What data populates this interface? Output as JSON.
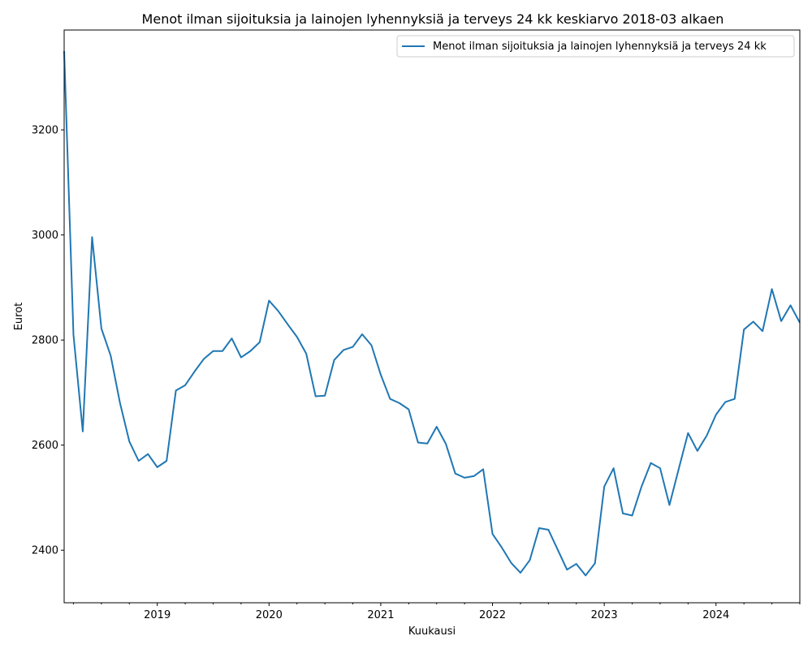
{
  "chart_data": {
    "type": "line",
    "title": "Menot ilman sijoituksia ja lainojen lyhennyksiä ja terveys 24 kk keskiarvo 2018-03 alkaen",
    "xlabel": "Kuukausi",
    "ylabel": "Eurot",
    "xlim": [
      "2018-03",
      "2024-10"
    ],
    "ylim": [
      2300,
      3390
    ],
    "y_ticks": [
      2400,
      2600,
      2800,
      3000,
      3200
    ],
    "x_ticks": [
      "2019",
      "2020",
      "2021",
      "2022",
      "2023",
      "2024"
    ],
    "grid": false,
    "legend": "upper right",
    "colors": {
      "line": "#1f77b4"
    },
    "series": [
      {
        "name": "Menot ilman sijoituksia ja lainojen lyhennyksiä ja terveys 24 kk",
        "x": [
          "2018-03",
          "2018-04",
          "2018-05",
          "2018-06",
          "2018-07",
          "2018-08",
          "2018-09",
          "2018-10",
          "2018-11",
          "2018-12",
          "2019-01",
          "2019-02",
          "2019-03",
          "2019-04",
          "2019-05",
          "2019-06",
          "2019-07",
          "2019-08",
          "2019-09",
          "2019-10",
          "2019-11",
          "2019-12",
          "2020-01",
          "2020-02",
          "2020-03",
          "2020-04",
          "2020-05",
          "2020-06",
          "2020-07",
          "2020-08",
          "2020-09",
          "2020-10",
          "2020-11",
          "2020-12",
          "2021-01",
          "2021-02",
          "2021-03",
          "2021-04",
          "2021-05",
          "2021-06",
          "2021-07",
          "2021-08",
          "2021-09",
          "2021-10",
          "2021-11",
          "2021-12",
          "2022-01",
          "2022-02",
          "2022-03",
          "2022-04",
          "2022-05",
          "2022-06",
          "2022-07",
          "2022-08",
          "2022-09",
          "2022-10",
          "2022-11",
          "2022-12",
          "2023-01",
          "2023-02",
          "2023-03",
          "2023-04",
          "2023-05",
          "2023-06",
          "2023-07",
          "2023-08",
          "2023-09",
          "2023-10",
          "2023-11",
          "2023-12",
          "2024-01",
          "2024-02",
          "2024-03",
          "2024-04",
          "2024-05",
          "2024-06",
          "2024-07",
          "2024-08",
          "2024-09",
          "2024-10"
        ],
        "values": [
          3350,
          2810,
          2626,
          2996,
          2822,
          2770,
          2680,
          2607,
          2570,
          2583,
          2558,
          2570,
          2704,
          2714,
          2740,
          2764,
          2779,
          2779,
          2803,
          2767,
          2779,
          2796,
          2875,
          2855,
          2830,
          2806,
          2774,
          2693,
          2694,
          2762,
          2781,
          2787,
          2811,
          2790,
          2734,
          2688,
          2680,
          2668,
          2605,
          2603,
          2635,
          2602,
          2546,
          2538,
          2541,
          2554,
          2431,
          2405,
          2376,
          2357,
          2381,
          2442,
          2439,
          2401,
          2363,
          2374,
          2352,
          2375,
          2521,
          2556,
          2470,
          2466,
          2521,
          2566,
          2556,
          2486,
          2555,
          2623,
          2589,
          2618,
          2658,
          2682,
          2688,
          2820,
          2835,
          2817,
          2897,
          2836,
          2866,
          2833
        ]
      }
    ]
  }
}
